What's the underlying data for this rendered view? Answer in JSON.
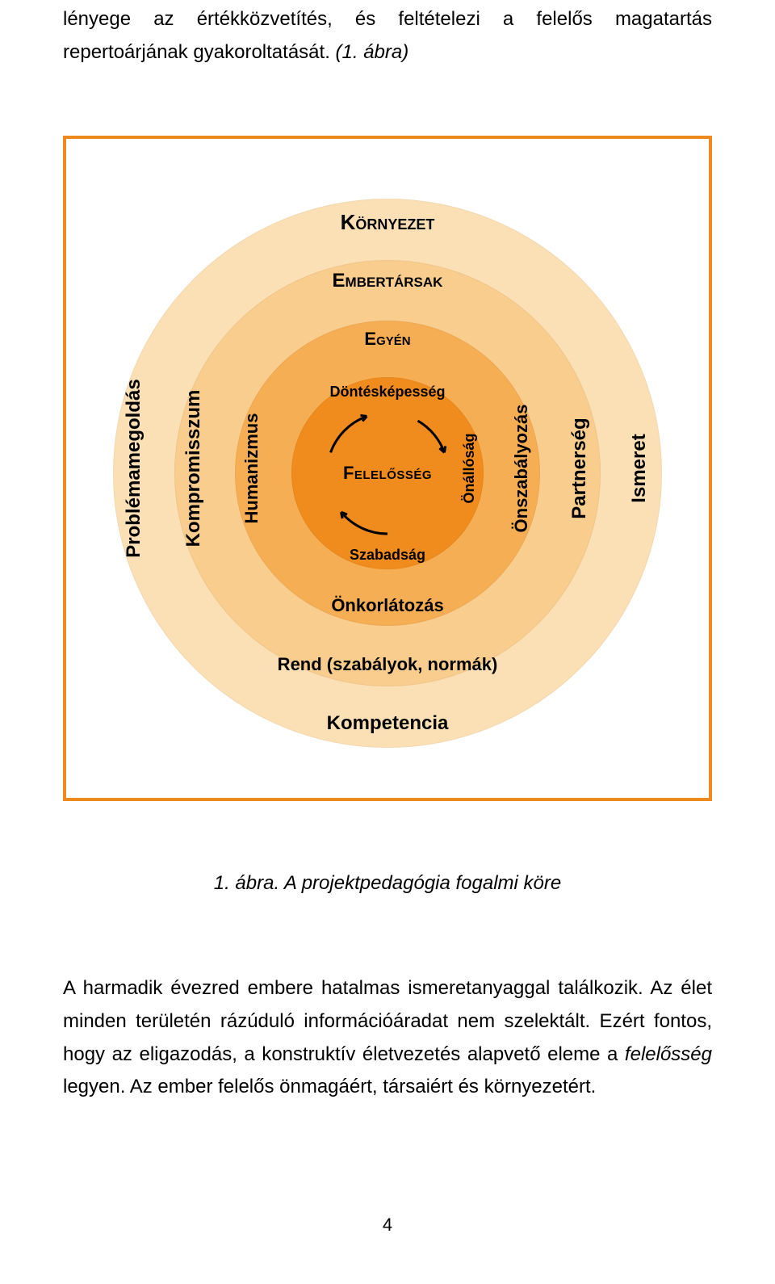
{
  "intro": {
    "text_before": "lényege az értékközvetítés, és feltételezi a felelős magatartás repertoárjának gyakoroltatását.",
    "fig_ref": "(1. ábra)"
  },
  "caption": "1. ábra. A projektpedagógia fogalmi köre",
  "para2": {
    "sentence1": "A harmadik évezred embere hatalmas ismeretanyaggal találkozik. Az élet minden területén rázúduló információáradat nem szelektált. Ezért fontos, hogy az eligazodás, a konstruktív életvezetés alapvető eleme a ",
    "emph": "felelősség",
    "sentence1_tail": " legyen. Az ember felelős önmagáért, társaiért és  környezetért."
  },
  "page_number": "4",
  "frame_border_color": "#ed8a1c",
  "diagram": {
    "bg": "#ffffff",
    "center": "Felelősség",
    "rings": [
      {
        "key": "r1",
        "diameter": 238,
        "color": "#f08c1e",
        "inner_top": "Döntésképesség",
        "inner_right": "Önállóság",
        "inner_bottom": "Szabadság",
        "center_fontsize": 22
      },
      {
        "key": "r2",
        "diameter": 378,
        "color": "#f6ae55",
        "top": "Egyén",
        "bottom": "Önkorlátozás",
        "left": "Humanizmus",
        "right": "Önszabályozás",
        "top_fontsize": 22,
        "bottom_fontsize": 22,
        "side_fontsize": 22
      },
      {
        "key": "r3",
        "diameter": 528,
        "color": "#f9cd8e",
        "top": "Embertársak",
        "bottom": "Rend (szabályok, normák)",
        "left": "Kompromisszum",
        "right": "Partnerség",
        "top_fontsize": 24,
        "bottom_fontsize": 22,
        "side_fontsize": 24
      },
      {
        "key": "r4",
        "diameter": 680,
        "color": "#fbe0b6",
        "top": "Környezet",
        "bottom": "Kompetencia",
        "left": "Problémamegoldás",
        "right": "Ismeret",
        "top_fontsize": 26,
        "bottom_fontsize": 24,
        "side_fontsize": 24
      }
    ],
    "arrow_color": "#000000"
  }
}
